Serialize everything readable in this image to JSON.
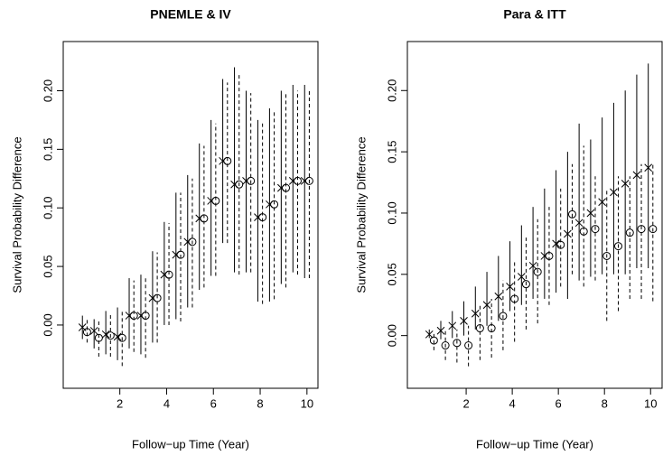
{
  "chart_data": [
    {
      "type": "interval",
      "title": "PNEMLE & IV",
      "xlabel": "Follow−up Time (Year)",
      "ylabel": "Survival Probability Difference",
      "x": [
        0.5,
        1,
        1.5,
        2,
        2.5,
        3,
        3.5,
        4,
        4.5,
        5,
        5.5,
        6,
        6.5,
        7,
        7.5,
        8,
        8.5,
        9,
        9.5,
        10
      ],
      "xlim": [
        -0.42,
        10.47
      ],
      "ylim": [
        -0.054,
        0.242
      ],
      "xticks": [
        2,
        4,
        6,
        8,
        10
      ],
      "yticks": [
        {
          "value": 0,
          "label": "0.00"
        },
        {
          "value": 0.05,
          "label": "0.05"
        },
        {
          "value": 0.1,
          "label": "0.10"
        },
        {
          "value": 0.15,
          "label": "0.15"
        },
        {
          "value": 0.2,
          "label": "0.20"
        }
      ],
      "series": [
        {
          "marker": "cross",
          "line_style": "solid",
          "color": "#000000",
          "values": [
            -0.002,
            -0.005,
            -0.008,
            -0.01,
            0.008,
            0.008,
            0.023,
            0.043,
            0.06,
            0.071,
            0.091,
            0.106,
            0.14,
            0.12,
            0.123,
            0.092,
            0.103,
            0.117,
            0.123,
            0.123
          ],
          "lower": [
            -0.012,
            -0.02,
            -0.025,
            -0.03,
            -0.02,
            -0.025,
            -0.015,
            0.0,
            0.005,
            0.015,
            0.03,
            0.042,
            0.07,
            0.045,
            0.045,
            0.02,
            0.02,
            0.035,
            0.045,
            0.04
          ],
          "upper": [
            0.008,
            0.005,
            0.012,
            0.015,
            0.04,
            0.043,
            0.063,
            0.088,
            0.113,
            0.128,
            0.155,
            0.175,
            0.21,
            0.22,
            0.2,
            0.175,
            0.185,
            0.2,
            0.205,
            0.205
          ]
        },
        {
          "marker": "circle",
          "line_style": "dashed",
          "color": "#000000",
          "values": [
            -0.006,
            -0.011,
            -0.009,
            -0.011,
            0.008,
            0.008,
            0.023,
            0.043,
            0.06,
            0.071,
            0.091,
            0.106,
            0.14,
            0.12,
            0.123,
            0.092,
            0.103,
            0.117,
            0.123,
            0.123
          ],
          "lower": [
            -0.015,
            -0.027,
            -0.027,
            -0.035,
            -0.023,
            -0.028,
            -0.015,
            0.0,
            0.003,
            0.015,
            0.032,
            0.042,
            0.07,
            0.043,
            0.045,
            0.018,
            0.022,
            0.032,
            0.043,
            0.04
          ],
          "upper": [
            0.005,
            0.003,
            0.01,
            0.013,
            0.038,
            0.042,
            0.062,
            0.087,
            0.113,
            0.125,
            0.153,
            0.172,
            0.207,
            0.215,
            0.198,
            0.172,
            0.182,
            0.198,
            0.2,
            0.2
          ]
        }
      ]
    },
    {
      "type": "interval",
      "title": "Para & ITT",
      "xlabel": "Follow−up Time (Year)",
      "ylabel": "Survival Probability Difference",
      "x": [
        0.5,
        1,
        1.5,
        2,
        2.5,
        3,
        3.5,
        4,
        4.5,
        5,
        5.5,
        6,
        6.5,
        7,
        7.5,
        8,
        8.5,
        9,
        9.5,
        10
      ],
      "xlim": [
        -0.55,
        10.5
      ],
      "ylim": [
        -0.043,
        0.24
      ],
      "xticks": [
        2,
        4,
        6,
        8,
        10
      ],
      "yticks": [
        {
          "value": 0,
          "label": "0.00"
        },
        {
          "value": 0.05,
          "label": "0.05"
        },
        {
          "value": 0.1,
          "label": "0.10"
        },
        {
          "value": 0.15,
          "label": "0.15"
        },
        {
          "value": 0.2,
          "label": "0.20"
        }
      ],
      "series": [
        {
          "marker": "cross",
          "line_style": "solid",
          "color": "#000000",
          "values": [
            0.001,
            0.004,
            0.008,
            0.012,
            0.018,
            0.025,
            0.032,
            0.04,
            0.048,
            0.057,
            0.065,
            0.075,
            0.083,
            0.092,
            0.1,
            0.109,
            0.117,
            0.124,
            0.131,
            0.137
          ],
          "lower": [
            -0.002,
            -0.003,
            -0.002,
            0,
            0.005,
            0.008,
            0.012,
            0.02,
            0.025,
            0.03,
            0.03,
            0.035,
            0.03,
            0.045,
            0.048,
            0.05,
            0.05,
            0.05,
            0.055,
            0.055
          ],
          "upper": [
            0.005,
            0.012,
            0.02,
            0.028,
            0.04,
            0.052,
            0.065,
            0.077,
            0.09,
            0.105,
            0.12,
            0.135,
            0.15,
            0.173,
            0.16,
            0.178,
            0.19,
            0.2,
            0.213,
            0.222
          ]
        },
        {
          "marker": "circle",
          "line_style": "dashed",
          "color": "#000000",
          "values": [
            -0.004,
            -0.008,
            -0.006,
            -0.008,
            0.006,
            0.006,
            0.016,
            0.03,
            0.042,
            0.052,
            0.065,
            0.074,
            0.099,
            0.085,
            0.087,
            0.065,
            0.073,
            0.084,
            0.087,
            0.087
          ],
          "lower": [
            -0.012,
            -0.02,
            -0.022,
            -0.025,
            -0.02,
            -0.018,
            -0.012,
            -0.005,
            0.005,
            0.01,
            0.025,
            0.04,
            0.05,
            0.04,
            0.045,
            0.012,
            0.02,
            0.03,
            0.03,
            0.028
          ],
          "upper": [
            0.003,
            0.005,
            0.005,
            0.008,
            0.025,
            0.03,
            0.045,
            0.06,
            0.08,
            0.095,
            0.105,
            0.12,
            0.14,
            0.155,
            0.13,
            0.12,
            0.13,
            0.13,
            0.14,
            0.14
          ]
        }
      ]
    }
  ]
}
